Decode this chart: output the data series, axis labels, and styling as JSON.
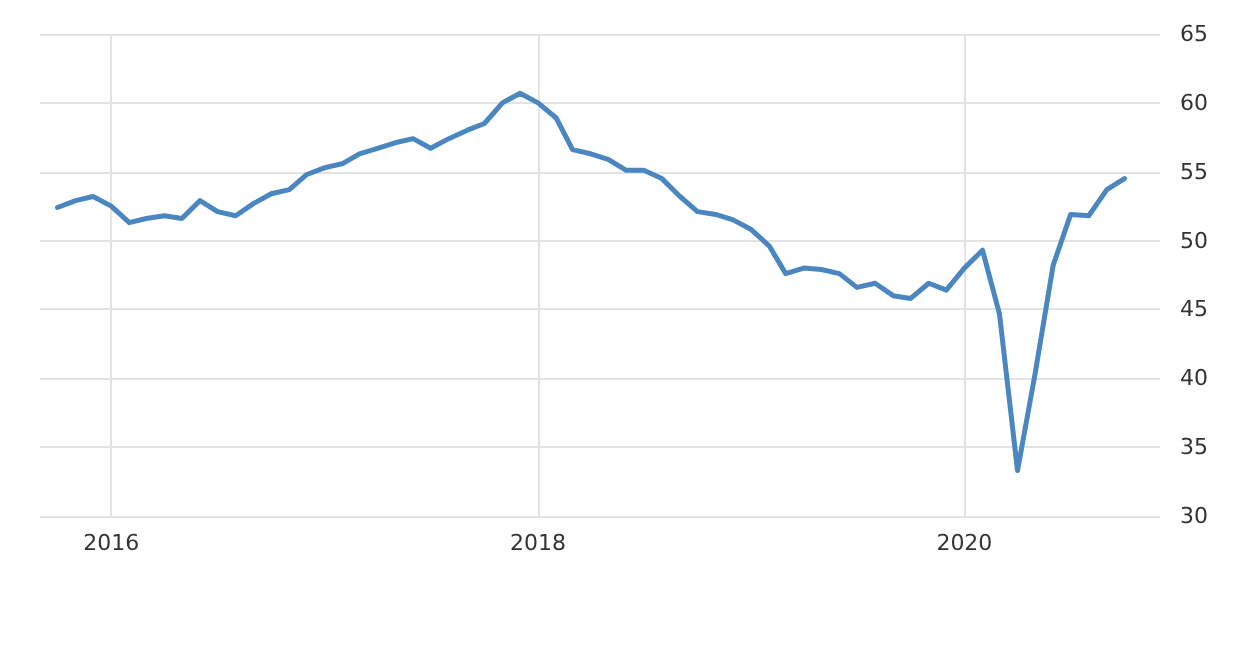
{
  "chart_data": {
    "type": "line",
    "x": [
      "2015-10",
      "2015-11",
      "2015-12",
      "2016-01",
      "2016-02",
      "2016-03",
      "2016-04",
      "2016-05",
      "2016-06",
      "2016-07",
      "2016-08",
      "2016-09",
      "2016-10",
      "2016-11",
      "2016-12",
      "2017-01",
      "2017-02",
      "2017-03",
      "2017-04",
      "2017-05",
      "2017-06",
      "2017-07",
      "2017-08",
      "2017-09",
      "2017-10",
      "2017-11",
      "2017-12",
      "2018-01",
      "2018-02",
      "2018-03",
      "2018-04",
      "2018-05",
      "2018-06",
      "2018-07",
      "2018-08",
      "2018-09",
      "2018-10",
      "2018-11",
      "2018-12",
      "2019-01",
      "2019-02",
      "2019-03",
      "2019-04",
      "2019-05",
      "2019-06",
      "2019-07",
      "2019-08",
      "2019-09",
      "2019-10",
      "2019-11",
      "2019-12",
      "2020-01",
      "2020-02",
      "2020-03",
      "2020-04",
      "2020-05",
      "2020-06",
      "2020-07",
      "2020-08",
      "2020-09",
      "2020-10"
    ],
    "series": [
      {
        "color": "#4a86c0",
        "values": [
          52.4,
          52.9,
          53.2,
          52.5,
          51.3,
          51.6,
          51.8,
          51.6,
          52.9,
          52.1,
          51.8,
          52.7,
          53.4,
          53.7,
          54.8,
          55.3,
          55.6,
          56.3,
          56.7,
          57.1,
          57.4,
          56.7,
          57.4,
          58.0,
          58.5,
          60.0,
          60.7,
          60.0,
          58.9,
          56.6,
          56.3,
          55.9,
          55.1,
          55.1,
          54.5,
          53.2,
          52.1,
          51.9,
          51.5,
          50.8,
          49.6,
          47.6,
          48.0,
          47.9,
          47.6,
          46.6,
          46.9,
          46.0,
          45.8,
          46.9,
          46.4,
          48.0,
          49.3,
          44.7,
          33.3,
          40.3,
          48.2,
          51.9,
          51.8,
          53.7,
          54.5
        ]
      }
    ],
    "xlim": [
      "2015-09",
      "2020-12"
    ],
    "xticks": [
      {
        "value": "2016-01",
        "label": "2016"
      },
      {
        "value": "2018-01",
        "label": "2018"
      },
      {
        "value": "2020-01",
        "label": "2020"
      }
    ],
    "ylim": [
      30,
      65
    ],
    "yticks": [
      30,
      35,
      40,
      45,
      50,
      55,
      60,
      65
    ],
    "grid": true,
    "marker": "none",
    "line_style": "solid"
  }
}
